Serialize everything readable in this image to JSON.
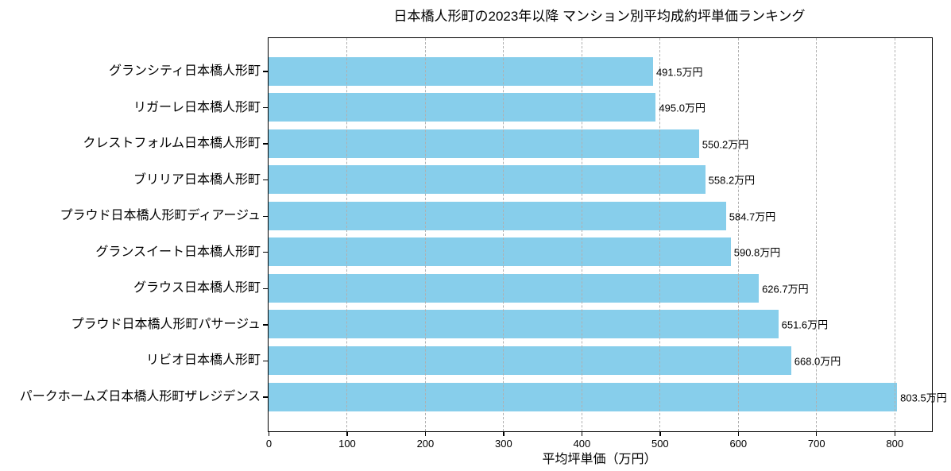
{
  "chart_data": {
    "type": "bar",
    "orientation": "horizontal",
    "title": "日本橋人形町の2023年以降 マンション別平均成約坪単価ランキング",
    "xlabel": "平均坪単価（万円）",
    "ylabel": "",
    "unit": "万円",
    "categories": [
      "グランシティ日本橋人形町",
      "リガーレ日本橋人形町",
      "クレストフォルム日本橋人形町",
      "ブリリア日本橋人形町",
      "プラウド日本橋人形町ディアージュ",
      "グランスイート日本橋人形町",
      "グラウス日本橋人形町",
      "プラウド日本橋人形町パサージュ",
      "リビオ日本橋人形町",
      "パークホームズ日本橋人形町ザレジデンス"
    ],
    "values": [
      491.5,
      495.0,
      550.2,
      558.2,
      584.7,
      590.8,
      626.7,
      651.6,
      668.0,
      803.5
    ],
    "value_labels": [
      "491.5万円",
      "495.0万円",
      "550.2万円",
      "558.2万円",
      "584.7万円",
      "590.8万円",
      "626.7万円",
      "651.6万円",
      "668.0万円",
      "803.5万円"
    ],
    "xlim": [
      0,
      848
    ],
    "xticks": [
      0,
      100,
      200,
      300,
      400,
      500,
      600,
      700,
      800
    ],
    "xtick_labels": [
      "0",
      "100",
      "200",
      "300",
      "400",
      "500",
      "600",
      "700",
      "800"
    ],
    "grid": {
      "axis": "x",
      "style": "dashed",
      "on_top": true
    },
    "legend": "none",
    "colors": {
      "bar": "#87CEEB",
      "grid": "#b0b0b0",
      "text": "#000000",
      "spine": "#000000",
      "background": "#ffffff"
    }
  }
}
